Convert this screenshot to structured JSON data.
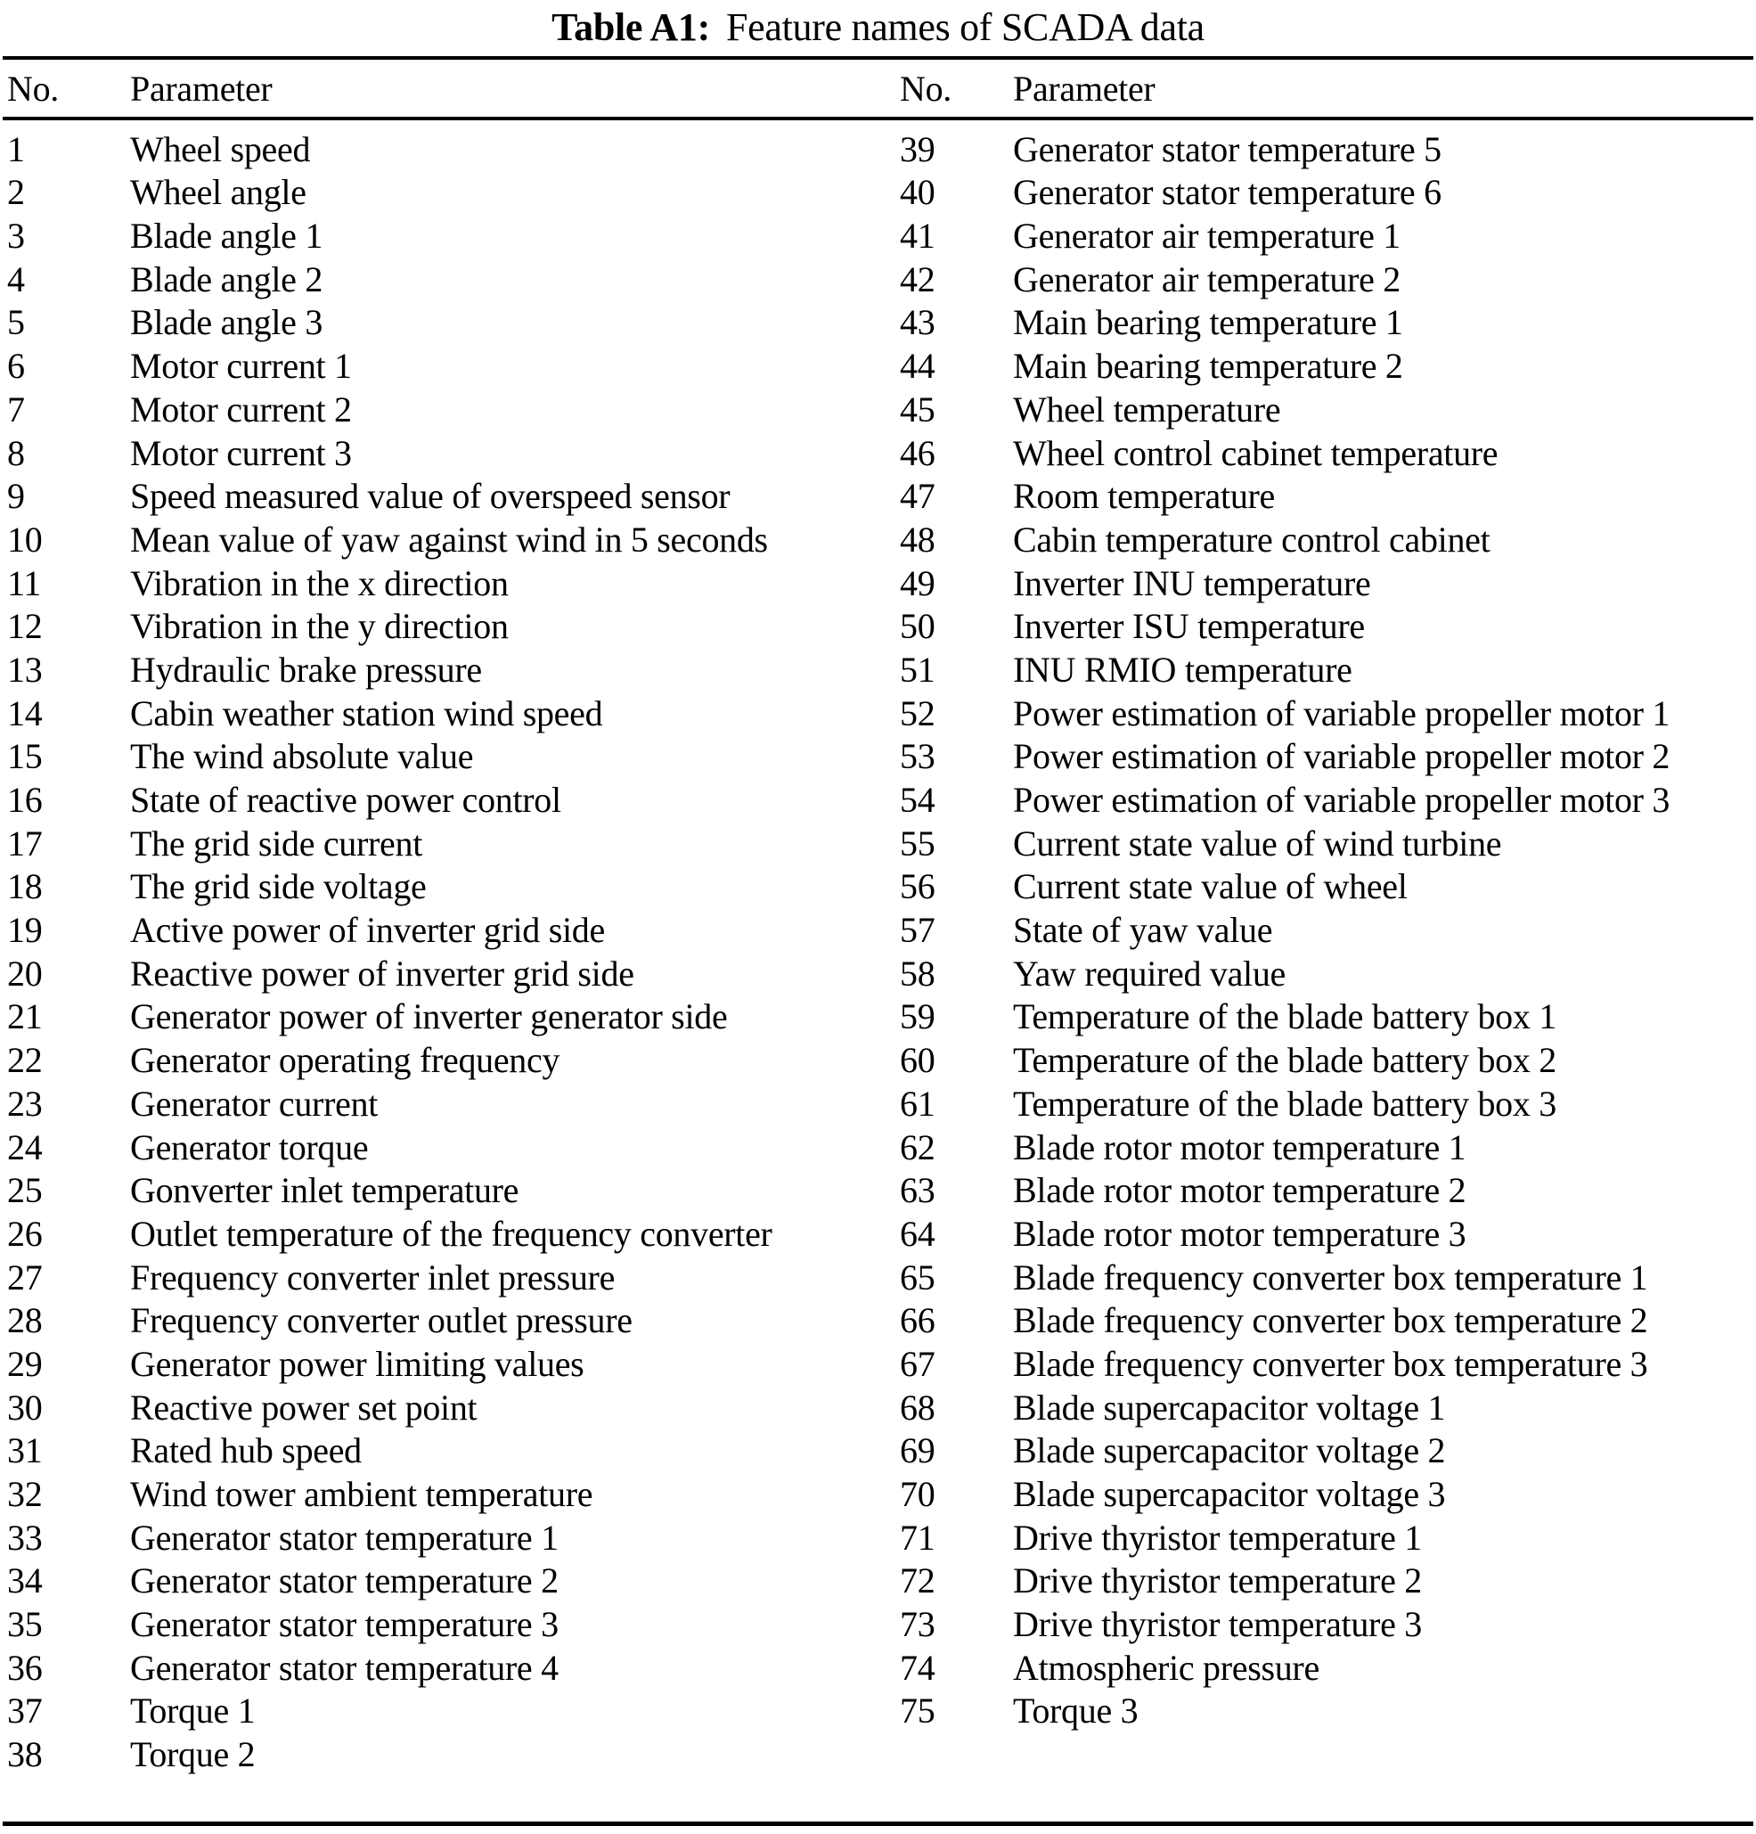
{
  "page": {
    "background": "#ffffff",
    "text_color": "#000000"
  },
  "title": {
    "label": "Table A1:",
    "text": "Feature names of SCADA data"
  },
  "table": {
    "headers": [
      "No.",
      "Parameter",
      "No.",
      "Parameter"
    ],
    "left": [
      {
        "no": "1",
        "param": "Wheel speed"
      },
      {
        "no": "2",
        "param": "Wheel angle"
      },
      {
        "no": "3",
        "param": "Blade angle 1"
      },
      {
        "no": "4",
        "param": "Blade angle 2"
      },
      {
        "no": "5",
        "param": "Blade angle 3"
      },
      {
        "no": "6",
        "param": "Motor current 1"
      },
      {
        "no": "7",
        "param": "Motor current 2"
      },
      {
        "no": "8",
        "param": "Motor current 3"
      },
      {
        "no": "9",
        "param": "Speed measured value of overspeed sensor"
      },
      {
        "no": "10",
        "param": "Mean value of yaw against wind in 5 seconds"
      },
      {
        "no": "11",
        "param": "Vibration in the x direction"
      },
      {
        "no": "12",
        "param": "Vibration in the y direction"
      },
      {
        "no": "13",
        "param": "Hydraulic brake pressure"
      },
      {
        "no": "14",
        "param": "Cabin weather station wind speed"
      },
      {
        "no": "15",
        "param": "The wind absolute value"
      },
      {
        "no": "16",
        "param": "State of reactive power control"
      },
      {
        "no": "17",
        "param": "The grid side current"
      },
      {
        "no": "18",
        "param": "The grid side voltage"
      },
      {
        "no": "19",
        "param": "Active power of inverter grid side"
      },
      {
        "no": "20",
        "param": "Reactive power of inverter grid side"
      },
      {
        "no": "21",
        "param": "Generator power of inverter generator side"
      },
      {
        "no": "22",
        "param": "Generator operating frequency"
      },
      {
        "no": "23",
        "param": "Generator current"
      },
      {
        "no": "24",
        "param": "Generator torque"
      },
      {
        "no": "25",
        "param": "Gonverter inlet temperature"
      },
      {
        "no": "26",
        "param": "Outlet temperature of the frequency converter"
      },
      {
        "no": "27",
        "param": "Frequency converter inlet pressure"
      },
      {
        "no": "28",
        "param": "Frequency converter outlet pressure"
      },
      {
        "no": "29",
        "param": "Generator power limiting values"
      },
      {
        "no": "30",
        "param": "Reactive power set point"
      },
      {
        "no": "31",
        "param": "Rated hub speed"
      },
      {
        "no": "32",
        "param": "Wind tower ambient temperature"
      },
      {
        "no": "33",
        "param": "Generator stator temperature 1"
      },
      {
        "no": "34",
        "param": "Generator stator temperature 2"
      },
      {
        "no": "35",
        "param": "Generator stator temperature 3"
      },
      {
        "no": "36",
        "param": "Generator stator temperature 4"
      },
      {
        "no": "37",
        "param": "Torque 1"
      },
      {
        "no": "38",
        "param": "Torque 2"
      }
    ],
    "right": [
      {
        "no": "39",
        "param": "Generator stator temperature 5"
      },
      {
        "no": "40",
        "param": "Generator stator temperature 6"
      },
      {
        "no": "41",
        "param": "Generator air temperature 1"
      },
      {
        "no": "42",
        "param": "Generator air temperature 2"
      },
      {
        "no": "43",
        "param": "Main bearing temperature 1"
      },
      {
        "no": "44",
        "param": "Main bearing temperature 2"
      },
      {
        "no": "45",
        "param": "Wheel temperature"
      },
      {
        "no": "46",
        "param": "Wheel control cabinet temperature"
      },
      {
        "no": "47",
        "param": "Room temperature"
      },
      {
        "no": "48",
        "param": "Cabin temperature control cabinet"
      },
      {
        "no": "49",
        "param": "Inverter INU temperature"
      },
      {
        "no": "50",
        "param": "Inverter ISU temperature"
      },
      {
        "no": "51",
        "param": "INU RMIO temperature"
      },
      {
        "no": "52",
        "param": "Power estimation of variable propeller motor 1"
      },
      {
        "no": "53",
        "param": "Power estimation of variable propeller motor 2"
      },
      {
        "no": "54",
        "param": "Power estimation of variable propeller motor 3"
      },
      {
        "no": "55",
        "param": "Current state value of wind turbine"
      },
      {
        "no": "56",
        "param": "Current state value of wheel"
      },
      {
        "no": "57",
        "param": "State of yaw value"
      },
      {
        "no": "58",
        "param": "Yaw required value"
      },
      {
        "no": "59",
        "param": "Temperature of the blade battery box 1"
      },
      {
        "no": "60",
        "param": "Temperature of the blade battery box 2"
      },
      {
        "no": "61",
        "param": "Temperature of the blade battery box 3"
      },
      {
        "no": "62",
        "param": "Blade rotor motor temperature 1"
      },
      {
        "no": "63",
        "param": "Blade rotor motor temperature 2"
      },
      {
        "no": "64",
        "param": "Blade rotor motor temperature 3"
      },
      {
        "no": "65",
        "param": "Blade frequency converter box temperature 1"
      },
      {
        "no": "66",
        "param": "Blade frequency converter box temperature 2"
      },
      {
        "no": "67",
        "param": "Blade frequency converter box temperature 3"
      },
      {
        "no": "68",
        "param": "Blade supercapacitor voltage 1"
      },
      {
        "no": "69",
        "param": "Blade supercapacitor voltage 2"
      },
      {
        "no": "70",
        "param": "Blade supercapacitor voltage 3"
      },
      {
        "no": "71",
        "param": "Drive thyristor temperature 1"
      },
      {
        "no": "72",
        "param": "Drive thyristor temperature 2"
      },
      {
        "no": "73",
        "param": "Drive thyristor temperature 3"
      },
      {
        "no": "74",
        "param": "Atmospheric pressure"
      },
      {
        "no": "75",
        "param": "Torque 3"
      }
    ]
  }
}
